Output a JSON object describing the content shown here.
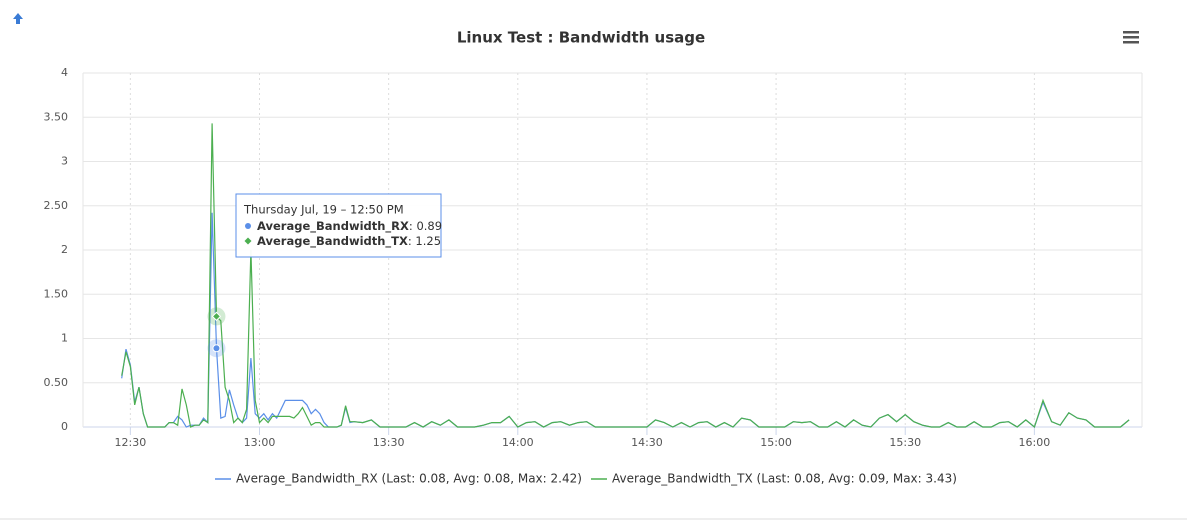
{
  "chart_data": {
    "type": "line",
    "title": "Linux Test : Bandwidth usage",
    "x": [
      "12:28",
      "12:29",
      "12:30",
      "12:31",
      "12:32",
      "12:33",
      "12:34",
      "12:35",
      "12:36",
      "12:37",
      "12:38",
      "12:39",
      "12:40",
      "12:41",
      "12:42",
      "12:43",
      "12:44",
      "12:45",
      "12:46",
      "12:47",
      "12:48",
      "12:49",
      "12:50",
      "12:51",
      "12:52",
      "12:53",
      "12:54",
      "12:55",
      "12:56",
      "12:57",
      "12:58",
      "12:59",
      "13:00",
      "13:01",
      "13:02",
      "13:03",
      "13:04",
      "13:05",
      "13:06",
      "13:07",
      "13:08",
      "13:09",
      "13:10",
      "13:11",
      "13:12",
      "13:13",
      "13:14",
      "13:15",
      "13:16",
      "13:17",
      "13:18",
      "13:19",
      "13:20",
      "13:21",
      "13:22",
      "13:24",
      "13:26",
      "13:28",
      "13:30",
      "13:32",
      "13:34",
      "13:36",
      "13:38",
      "13:40",
      "13:42",
      "13:44",
      "13:46",
      "13:48",
      "13:50",
      "13:52",
      "13:54",
      "13:56",
      "13:58",
      "14:00",
      "14:02",
      "14:04",
      "14:06",
      "14:08",
      "14:10",
      "14:12",
      "14:14",
      "14:16",
      "14:18",
      "14:20",
      "14:22",
      "14:24",
      "14:26",
      "14:28",
      "14:30",
      "14:32",
      "14:34",
      "14:36",
      "14:38",
      "14:40",
      "14:42",
      "14:44",
      "14:46",
      "14:48",
      "14:50",
      "14:52",
      "14:54",
      "14:56",
      "14:58",
      "15:00",
      "15:02",
      "15:04",
      "15:06",
      "15:08",
      "15:10",
      "15:12",
      "15:14",
      "15:16",
      "15:18",
      "15:20",
      "15:22",
      "15:24",
      "15:26",
      "15:28",
      "15:30",
      "15:32",
      "15:34",
      "15:36",
      "15:38",
      "15:40",
      "15:42",
      "15:44",
      "15:46",
      "15:48",
      "15:50",
      "15:52",
      "15:54",
      "15:56",
      "15:58",
      "16:00",
      "16:02",
      "16:04",
      "16:06",
      "16:08",
      "16:10",
      "16:12",
      "16:14",
      "16:16",
      "16:18",
      "16:20",
      "16:22"
    ],
    "series": [
      {
        "name": "Average_Bandwidth_RX",
        "color": "#5b8fe8",
        "legend_label": "Average_Bandwidth_RX (Last: 0.08, Avg: 0.08, Max: 2.42)",
        "values": [
          0.55,
          0.88,
          0.7,
          0.28,
          0.45,
          0.15,
          0,
          0,
          0,
          0,
          0,
          0.05,
          0.05,
          0.12,
          0.08,
          0,
          0.02,
          0.02,
          0.02,
          0.1,
          0.05,
          2.42,
          0.89,
          0.1,
          0.12,
          0.42,
          0.25,
          0.1,
          0.05,
          0.1,
          0.78,
          0.15,
          0.1,
          0.15,
          0.08,
          0.15,
          0.1,
          0.2,
          0.3,
          0.3,
          0.3,
          0.3,
          0.3,
          0.25,
          0.15,
          0.2,
          0.15,
          0.05,
          0,
          0,
          0,
          0.02,
          0.22,
          0.05,
          0.06,
          0.05,
          0.08,
          0,
          0,
          0,
          0,
          0.05,
          0,
          0.06,
          0.02,
          0.08,
          0,
          0,
          0,
          0.02,
          0.05,
          0.05,
          0.12,
          0,
          0.05,
          0.06,
          0,
          0.05,
          0.06,
          0.02,
          0.05,
          0.06,
          0,
          0,
          0,
          0,
          0,
          0,
          0,
          0.08,
          0.05,
          0,
          0.05,
          0,
          0.05,
          0.06,
          0,
          0.05,
          0,
          0.1,
          0.08,
          0,
          0,
          0,
          0,
          0.06,
          0.05,
          0.06,
          0,
          0,
          0.06,
          0,
          0.08,
          0.02,
          0,
          0.1,
          0.14,
          0.06,
          0.14,
          0.06,
          0.02,
          0,
          0,
          0.05,
          0,
          0,
          0.06,
          0,
          0,
          0.05,
          0.06,
          0,
          0.08,
          0,
          0.28,
          0.06,
          0.02,
          0.16,
          0.1,
          0.08,
          0,
          0,
          0,
          0,
          0.08
        ]
      },
      {
        "name": "Average_Bandwidth_TX",
        "color": "#4caf50",
        "legend_label": "Average_Bandwidth_TX (Last: 0.08, Avg: 0.09, Max: 3.43)",
        "values": [
          0.58,
          0.85,
          0.68,
          0.25,
          0.45,
          0.15,
          0,
          0,
          0,
          0,
          0,
          0.05,
          0.05,
          0.02,
          0.43,
          0.25,
          0,
          0.02,
          0.02,
          0.08,
          0.05,
          3.43,
          1.25,
          1.2,
          0.45,
          0.3,
          0.05,
          0.1,
          0.05,
          0.2,
          2.0,
          0.3,
          0.05,
          0.1,
          0.05,
          0.12,
          0.12,
          0.12,
          0.12,
          0.12,
          0.1,
          0.15,
          0.22,
          0.12,
          0.02,
          0.05,
          0.05,
          0,
          0,
          0,
          0,
          0.02,
          0.24,
          0.06,
          0.06,
          0.05,
          0.08,
          0,
          0,
          0,
          0,
          0.05,
          0,
          0.06,
          0.02,
          0.08,
          0,
          0,
          0,
          0.02,
          0.05,
          0.05,
          0.12,
          0,
          0.05,
          0.06,
          0,
          0.05,
          0.06,
          0.02,
          0.05,
          0.06,
          0,
          0,
          0,
          0,
          0,
          0,
          0,
          0.08,
          0.05,
          0,
          0.05,
          0,
          0.05,
          0.06,
          0,
          0.05,
          0,
          0.1,
          0.08,
          0,
          0,
          0,
          0,
          0.06,
          0.05,
          0.06,
          0,
          0,
          0.06,
          0,
          0.08,
          0.02,
          0,
          0.1,
          0.14,
          0.06,
          0.14,
          0.06,
          0.02,
          0,
          0,
          0.05,
          0,
          0,
          0.06,
          0,
          0,
          0.05,
          0.06,
          0,
          0.08,
          0,
          0.3,
          0.06,
          0.02,
          0.16,
          0.1,
          0.08,
          0,
          0,
          0,
          0,
          0.08
        ]
      }
    ],
    "xlim": [
      "12:19",
      "16:25"
    ],
    "xticks": [
      "12:30",
      "13:00",
      "13:30",
      "14:00",
      "14:30",
      "15:00",
      "15:30",
      "16:00"
    ],
    "ylim": [
      0,
      4
    ],
    "yticks": [
      0,
      {
        "value": 0.5,
        "label": "0.50"
      },
      1,
      {
        "value": 1.5,
        "label": "1.50"
      },
      2,
      {
        "value": 2.5,
        "label": "2.50"
      },
      3,
      {
        "value": 3.5,
        "label": "3.50"
      },
      4
    ],
    "grid": true,
    "tooltip": {
      "x": "12:50",
      "title": "Thursday Jul, 19 – 12:50 PM",
      "items": [
        {
          "name": "Average_Bandwidth_RX",
          "value": 0.89
        },
        {
          "name": "Average_Bandwidth_TX",
          "value": 1.25
        }
      ]
    }
  }
}
